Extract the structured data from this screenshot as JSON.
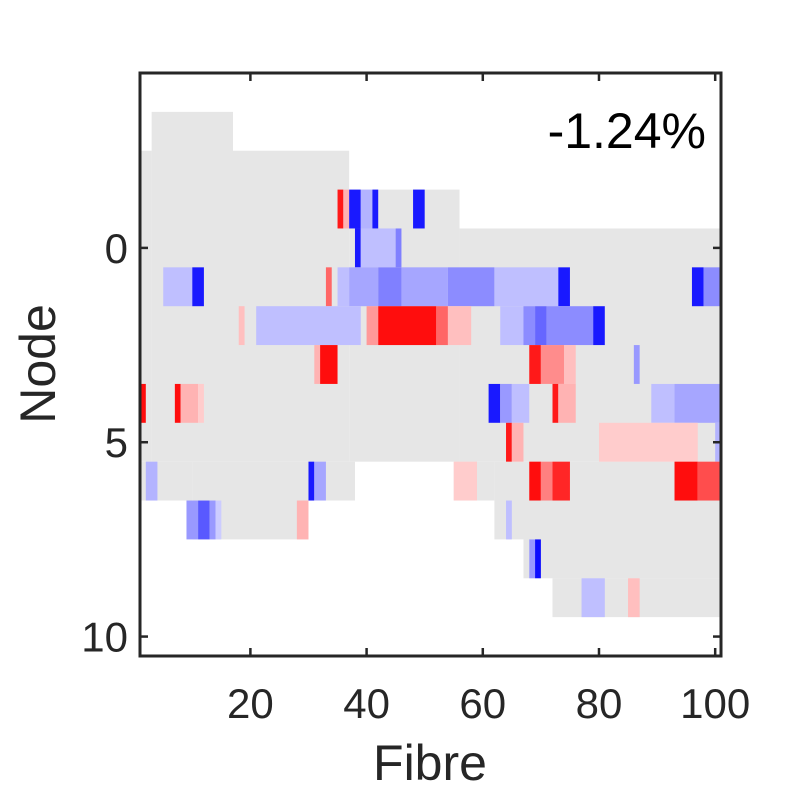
{
  "chart_data": {
    "type": "heatmap",
    "xlabel": "Fibre",
    "ylabel": "Node",
    "annotation": "-1.24%",
    "xlim": [
      1,
      101
    ],
    "ylim": [
      10.5,
      -4.5
    ],
    "y_reversed": true,
    "xticks": [
      20,
      40,
      60,
      80,
      100
    ],
    "yticks": [
      0,
      5,
      10
    ],
    "grid": false,
    "colors": {
      "background": "#e6e6e6",
      "positive_strong": "#ff0000",
      "negative_strong": "#0000ff",
      "neutral": "#ffffff"
    },
    "support_cells": [
      {
        "x": [
          1,
          3
        ],
        "y": [
          -2.5,
          5.5
        ]
      },
      {
        "x": [
          3,
          17
        ],
        "y": [
          -3.5,
          5.5
        ]
      },
      {
        "x": [
          17,
          37
        ],
        "y": [
          -2.5,
          5.5
        ]
      },
      {
        "x": [
          37,
          56
        ],
        "y": [
          -1.5,
          5.5
        ]
      },
      {
        "x": [
          56,
          101
        ],
        "y": [
          -0.5,
          5.5
        ]
      },
      {
        "x": [
          1,
          10
        ],
        "y": [
          5.5,
          6.5
        ]
      },
      {
        "x": [
          10,
          30
        ],
        "y": [
          5.5,
          7.5
        ]
      },
      {
        "x": [
          30,
          38
        ],
        "y": [
          5.5,
          6.5
        ]
      },
      {
        "x": [
          55,
          62
        ],
        "y": [
          5.5,
          6.5
        ]
      },
      {
        "x": [
          62,
          67
        ],
        "y": [
          5.5,
          7.5
        ]
      },
      {
        "x": [
          67,
          101
        ],
        "y": [
          5.5,
          8.5
        ]
      },
      {
        "x": [
          72,
          101
        ],
        "y": [
          8.5,
          9.5
        ]
      }
    ],
    "values": [
      {
        "x": [
          35,
          36
        ],
        "y": -1,
        "v": 0.9
      },
      {
        "x": [
          36,
          37
        ],
        "y": -1,
        "v": 0.3
      },
      {
        "x": [
          37,
          39
        ],
        "y": -1,
        "v": -0.9
      },
      {
        "x": [
          39,
          41
        ],
        "y": -1,
        "v": -0.3
      },
      {
        "x": [
          41,
          42
        ],
        "y": -1,
        "v": -0.9
      },
      {
        "x": [
          48,
          50
        ],
        "y": -1,
        "v": -0.9
      },
      {
        "x": [
          38,
          39
        ],
        "y": 0,
        "v": -0.9
      },
      {
        "x": [
          39,
          45
        ],
        "y": 0,
        "v": -0.25
      },
      {
        "x": [
          45,
          46
        ],
        "y": 0,
        "v": -0.5
      },
      {
        "x": [
          5,
          10
        ],
        "y": 1,
        "v": -0.25
      },
      {
        "x": [
          10,
          12
        ],
        "y": 1,
        "v": -0.9
      },
      {
        "x": [
          33,
          34
        ],
        "y": 1,
        "v": 0.6
      },
      {
        "x": [
          35,
          37
        ],
        "y": 1,
        "v": -0.25
      },
      {
        "x": [
          37,
          42
        ],
        "y": 1,
        "v": -0.35
      },
      {
        "x": [
          42,
          46
        ],
        "y": 1,
        "v": -0.5
      },
      {
        "x": [
          46,
          54
        ],
        "y": 1,
        "v": -0.35
      },
      {
        "x": [
          54,
          62
        ],
        "y": 1,
        "v": -0.45
      },
      {
        "x": [
          62,
          73
        ],
        "y": 1,
        "v": -0.25
      },
      {
        "x": [
          73,
          75
        ],
        "y": 1,
        "v": -0.9
      },
      {
        "x": [
          96,
          98
        ],
        "y": 1,
        "v": -0.9
      },
      {
        "x": [
          98,
          101
        ],
        "y": 1,
        "v": -0.45
      },
      {
        "x": [
          18,
          19
        ],
        "y": 2,
        "v": 0.25
      },
      {
        "x": [
          21,
          39
        ],
        "y": 2,
        "v": -0.25
      },
      {
        "x": [
          40,
          42
        ],
        "y": 2,
        "v": 0.4
      },
      {
        "x": [
          42,
          52
        ],
        "y": 2,
        "v": 0.95
      },
      {
        "x": [
          52,
          54
        ],
        "y": 2,
        "v": 0.6
      },
      {
        "x": [
          54,
          58
        ],
        "y": 2,
        "v": 0.25
      },
      {
        "x": [
          63,
          67
        ],
        "y": 2,
        "v": -0.25
      },
      {
        "x": [
          67,
          69
        ],
        "y": 2,
        "v": -0.45
      },
      {
        "x": [
          69,
          71
        ],
        "y": 2,
        "v": -0.6
      },
      {
        "x": [
          71,
          79
        ],
        "y": 2,
        "v": -0.45
      },
      {
        "x": [
          79,
          81
        ],
        "y": 2,
        "v": -0.9
      },
      {
        "x": [
          31,
          32
        ],
        "y": 3,
        "v": 0.3
      },
      {
        "x": [
          32,
          35
        ],
        "y": 3,
        "v": 0.95
      },
      {
        "x": [
          68,
          70
        ],
        "y": 3,
        "v": 0.9
      },
      {
        "x": [
          70,
          74
        ],
        "y": 3,
        "v": 0.45
      },
      {
        "x": [
          74,
          76
        ],
        "y": 3,
        "v": 0.25
      },
      {
        "x": [
          86,
          87
        ],
        "y": 3,
        "v": -0.4
      },
      {
        "x": [
          1,
          2
        ],
        "y": 4,
        "v": 0.95
      },
      {
        "x": [
          7,
          8
        ],
        "y": 4,
        "v": 0.95
      },
      {
        "x": [
          8,
          11
        ],
        "y": 4,
        "v": 0.3
      },
      {
        "x": [
          11,
          12
        ],
        "y": 4,
        "v": 0.2
      },
      {
        "x": [
          61,
          63
        ],
        "y": 4,
        "v": -0.9
      },
      {
        "x": [
          63,
          65
        ],
        "y": 4,
        "v": -0.4
      },
      {
        "x": [
          65,
          68
        ],
        "y": 4,
        "v": -0.25
      },
      {
        "x": [
          72,
          73
        ],
        "y": 4,
        "v": 0.9
      },
      {
        "x": [
          73,
          76
        ],
        "y": 4,
        "v": 0.3
      },
      {
        "x": [
          89,
          93
        ],
        "y": 4,
        "v": -0.25
      },
      {
        "x": [
          93,
          101
        ],
        "y": 4,
        "v": -0.35
      },
      {
        "x": [
          64,
          65
        ],
        "y": 5,
        "v": 0.9
      },
      {
        "x": [
          65,
          67
        ],
        "y": 5,
        "v": 0.3
      },
      {
        "x": [
          80,
          97
        ],
        "y": 5,
        "v": 0.2
      },
      {
        "x": [
          100,
          101
        ],
        "y": 5,
        "v": -0.3
      },
      {
        "x": [
          2,
          4
        ],
        "y": 6,
        "v": -0.3
      },
      {
        "x": [
          30,
          31
        ],
        "y": 6,
        "v": -0.9
      },
      {
        "x": [
          31,
          33
        ],
        "y": 6,
        "v": -0.35
      },
      {
        "x": [
          55,
          59
        ],
        "y": 6,
        "v": 0.2
      },
      {
        "x": [
          68,
          70
        ],
        "y": 6,
        "v": 0.95
      },
      {
        "x": [
          70,
          72
        ],
        "y": 6,
        "v": 0.5
      },
      {
        "x": [
          72,
          75
        ],
        "y": 6,
        "v": 0.85
      },
      {
        "x": [
          93,
          97
        ],
        "y": 6,
        "v": 0.95
      },
      {
        "x": [
          97,
          101
        ],
        "y": 6,
        "v": 0.7
      },
      {
        "x": [
          9,
          11
        ],
        "y": 7,
        "v": -0.4
      },
      {
        "x": [
          11,
          13
        ],
        "y": 7,
        "v": -0.65
      },
      {
        "x": [
          13,
          14
        ],
        "y": 7,
        "v": -0.4
      },
      {
        "x": [
          14,
          15
        ],
        "y": 7,
        "v": -0.2
      },
      {
        "x": [
          28,
          30
        ],
        "y": 7,
        "v": 0.3
      },
      {
        "x": [
          64,
          65
        ],
        "y": 7,
        "v": -0.25
      },
      {
        "x": [
          68,
          69
        ],
        "y": 8,
        "v": -0.4
      },
      {
        "x": [
          69,
          70
        ],
        "y": 8,
        "v": -0.95
      },
      {
        "x": [
          77,
          81
        ],
        "y": 9,
        "v": -0.25
      },
      {
        "x": [
          85,
          87
        ],
        "y": 9,
        "v": 0.25
      }
    ]
  }
}
